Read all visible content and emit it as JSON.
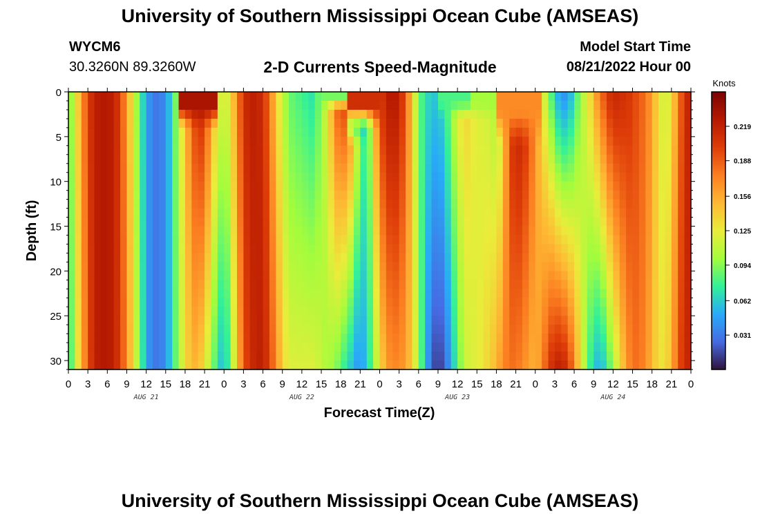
{
  "header": {
    "title_top": "University of Southern Mississippi Ocean Cube (AMSEAS)",
    "title_bottom": "University of Southern Mississippi Ocean Cube (AMSEAS)",
    "station_id": "WYCM6",
    "coordinates": "30.3260N  89.3260W",
    "plot_title": "2-D Currents Speed-Magnitude",
    "model_start_label": "Model Start Time",
    "model_start_value": "08/21/2022 Hour 00"
  },
  "chart_data": {
    "type": "heatmap",
    "title": "2-D Currents Speed-Magnitude",
    "xlabel": "Forecast Time(Z)",
    "ylabel": "Depth (ft)",
    "x_tick_labels": [
      "0",
      "3",
      "6",
      "9",
      "12",
      "15",
      "18",
      "21",
      "0",
      "3",
      "6",
      "9",
      "12",
      "15",
      "18",
      "21",
      "0",
      "3",
      "6",
      "9",
      "12",
      "15",
      "18",
      "21",
      "0",
      "3",
      "6",
      "9",
      "12",
      "15",
      "18",
      "21",
      "0"
    ],
    "day_labels": [
      "AUG 21",
      "AUG 22",
      "AUG 23",
      "AUG 24"
    ],
    "x_range_hours": [
      0,
      96
    ],
    "y_ticks": [
      0,
      5,
      10,
      15,
      20,
      25,
      30
    ],
    "y_range_ft": [
      0,
      31
    ],
    "colorbar": {
      "unit": "Knots",
      "ticks": [
        "0.219",
        "0.188",
        "0.156",
        "0.125",
        "0.094",
        "0.062",
        "0.031"
      ],
      "tick_values": [
        0.219,
        0.188,
        0.156,
        0.125,
        0.094,
        0.062,
        0.031
      ],
      "range": [
        0.0,
        0.25
      ]
    },
    "column_profiles": {
      "description": "Estimated speed (knots) at depth = 0 ft and depth = 31 ft for each forecast hour; linear between.",
      "hours": [
        0,
        1,
        2,
        3,
        4,
        5,
        6,
        7,
        8,
        9,
        10,
        11,
        12,
        13,
        14,
        15,
        16,
        17,
        18,
        19,
        20,
        21,
        22,
        23,
        24,
        25,
        26,
        27,
        28,
        29,
        30,
        31,
        32,
        33,
        34,
        35,
        36,
        37,
        38,
        39,
        40,
        41,
        42,
        43,
        44,
        45,
        46,
        47,
        48,
        49,
        50,
        51,
        52,
        53,
        54,
        55,
        56,
        57,
        58,
        59,
        60,
        61,
        62,
        63,
        64,
        65,
        66,
        67,
        68,
        69,
        70,
        71,
        72,
        73,
        74,
        75,
        76,
        77,
        78,
        79,
        80,
        81,
        82,
        83,
        84,
        85,
        86,
        87,
        88,
        89,
        90,
        91,
        92,
        93,
        94,
        95,
        96
      ],
      "surface": [
        0.08,
        0.12,
        0.16,
        0.2,
        0.22,
        0.225,
        0.225,
        0.22,
        0.2,
        0.16,
        0.12,
        0.08,
        0.05,
        0.03,
        0.03,
        0.04,
        0.07,
        0.11,
        0.14,
        0.19,
        0.21,
        0.21,
        0.16,
        0.13,
        0.11,
        0.13,
        0.17,
        0.21,
        0.22,
        0.22,
        0.21,
        0.18,
        0.14,
        0.11,
        0.09,
        0.08,
        0.08,
        0.07,
        0.07,
        0.1,
        0.12,
        0.18,
        0.2,
        0.2,
        0.16,
        0.1,
        0.07,
        0.13,
        0.2,
        0.22,
        0.23,
        0.22,
        0.19,
        0.14,
        0.09,
        0.07,
        0.06,
        0.06,
        0.07,
        0.1,
        0.12,
        0.14,
        0.13,
        0.12,
        0.12,
        0.11,
        0.1,
        0.12,
        0.2,
        0.22,
        0.22,
        0.2,
        0.17,
        0.13,
        0.1,
        0.06,
        0.04,
        0.04,
        0.07,
        0.1,
        0.12,
        0.15,
        0.18,
        0.2,
        0.22,
        0.21,
        0.21,
        0.2,
        0.19,
        0.18,
        0.16,
        0.13,
        0.11,
        0.13,
        0.17,
        0.21,
        0.22
      ],
      "bottom": [
        0.06,
        0.11,
        0.15,
        0.19,
        0.22,
        0.225,
        0.225,
        0.22,
        0.2,
        0.17,
        0.13,
        0.09,
        0.05,
        0.03,
        0.03,
        0.04,
        0.07,
        0.1,
        0.13,
        0.15,
        0.15,
        0.13,
        0.1,
        0.07,
        0.05,
        0.09,
        0.14,
        0.19,
        0.21,
        0.22,
        0.22,
        0.2,
        0.17,
        0.14,
        0.12,
        0.12,
        0.12,
        0.12,
        0.12,
        0.11,
        0.1,
        0.1,
        0.08,
        0.07,
        0.05,
        0.04,
        0.06,
        0.09,
        0.13,
        0.16,
        0.17,
        0.17,
        0.16,
        0.14,
        0.1,
        0.06,
        0.02,
        0.01,
        0.02,
        0.05,
        0.08,
        0.11,
        0.12,
        0.12,
        0.13,
        0.14,
        0.15,
        0.17,
        0.18,
        0.18,
        0.17,
        0.16,
        0.15,
        0.17,
        0.2,
        0.22,
        0.22,
        0.21,
        0.17,
        0.13,
        0.09,
        0.06,
        0.05,
        0.07,
        0.1,
        0.13,
        0.16,
        0.18,
        0.18,
        0.17,
        0.15,
        0.13,
        0.13,
        0.15,
        0.19,
        0.21,
        0.22
      ]
    },
    "surface_anomalies": [
      {
        "hour_range": [
          17,
          23
        ],
        "depth_max_ft": 4,
        "value": 0.23
      },
      {
        "hour_range": [
          39,
          44
        ],
        "depth_max_ft": 2,
        "value": 0.09
      },
      {
        "hour_range": [
          43,
          46
        ],
        "depth_max_ft": 6,
        "value": 0.05
      },
      {
        "hour_range": [
          43,
          48
        ],
        "depth_max_ft": 4,
        "value": 0.21
      },
      {
        "hour_range": [
          57,
          62
        ],
        "depth_max_ft": 3,
        "value": 0.08
      },
      {
        "hour_range": [
          62,
          73
        ],
        "depth_max_ft": 3,
        "value": 0.1
      },
      {
        "hour_range": [
          66,
          73
        ],
        "depth_max_ft": 6,
        "value": 0.17
      }
    ]
  }
}
